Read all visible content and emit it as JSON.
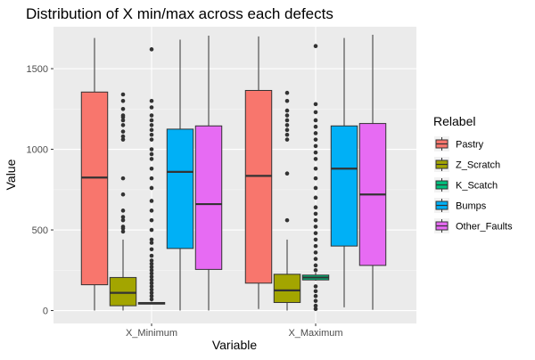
{
  "chart_data": {
    "type": "boxplot",
    "title": "Distribution of X min/max across each defects",
    "xlabel": "Variable",
    "ylabel": "Value",
    "categories": [
      "X_Minimum",
      "X_Maximum"
    ],
    "ylim": [
      -80,
      1760
    ],
    "yticks": [
      0,
      500,
      1000,
      1500
    ],
    "grid": true,
    "legend": {
      "title": "Relabel",
      "position": "right",
      "entries": [
        "Pastry",
        "Z_Scratch",
        "K_Scatch",
        "Bumps",
        "Other_Faults"
      ]
    },
    "series": [
      {
        "name": "Pastry",
        "color": "#F8766D",
        "boxes": [
          {
            "category": "X_Minimum",
            "min": 0,
            "q1": 160,
            "median": 825,
            "q3": 1355,
            "max": 1690,
            "outliers": []
          },
          {
            "category": "X_Maximum",
            "min": 10,
            "q1": 170,
            "median": 835,
            "q3": 1365,
            "max": 1700,
            "outliers": []
          }
        ]
      },
      {
        "name": "Z_Scratch",
        "color": "#A3A500",
        "boxes": [
          {
            "category": "X_Minimum",
            "min": 0,
            "q1": 30,
            "median": 110,
            "q3": 205,
            "max": 440,
            "outliers": [
              490,
              510,
              520,
              560,
              580,
              620,
              720,
              820,
              1060,
              1080,
              1110,
              1150,
              1180,
              1200,
              1210,
              1250,
              1300,
              1340
            ]
          },
          {
            "category": "X_Maximum",
            "min": 0,
            "q1": 50,
            "median": 125,
            "q3": 225,
            "max": 440,
            "outliers": [
              560,
              850,
              1060,
              1090,
              1120,
              1150,
              1180,
              1210,
              1240,
              1300,
              1350
            ]
          }
        ]
      },
      {
        "name": "K_Scatch",
        "color": "#00BF7D",
        "boxes": [
          {
            "category": "X_Minimum",
            "min": 40,
            "q1": 40,
            "median": 45,
            "q3": 50,
            "max": 55,
            "outliers": [
              70,
              90,
              110,
              130,
              150,
              170,
              190,
              210,
              230,
              250,
              270,
              290,
              310,
              340,
              380,
              420,
              440,
              500,
              560,
              620,
              680,
              760,
              820,
              880,
              940,
              970,
              1000,
              1060,
              1090,
              1120,
              1150,
              1180,
              1210,
              1260,
              1300,
              1620
            ]
          },
          {
            "category": "X_Maximum",
            "min": 185,
            "q1": 190,
            "median": 205,
            "q3": 220,
            "max": 235,
            "outliers": [
              10,
              30,
              60,
              90,
              120,
              150,
              250,
              280,
              320,
              360,
              400,
              440,
              480,
              520,
              560,
              600,
              640,
              700,
              760,
              820,
              880,
              940,
              980,
              1020,
              1060,
              1100,
              1140,
              1180,
              1230,
              1280,
              1640
            ]
          }
        ]
      },
      {
        "name": "Bumps",
        "color": "#00B0F6",
        "boxes": [
          {
            "category": "X_Minimum",
            "min": 0,
            "q1": 385,
            "median": 860,
            "q3": 1125,
            "max": 1680,
            "outliers": []
          },
          {
            "category": "X_Maximum",
            "min": 20,
            "q1": 400,
            "median": 880,
            "q3": 1145,
            "max": 1690,
            "outliers": []
          }
        ]
      },
      {
        "name": "Other_Faults",
        "color": "#E76BF3",
        "boxes": [
          {
            "category": "X_Minimum",
            "min": 0,
            "q1": 255,
            "median": 660,
            "q3": 1145,
            "max": 1705,
            "outliers": []
          },
          {
            "category": "X_Maximum",
            "min": 5,
            "q1": 280,
            "median": 720,
            "q3": 1160,
            "max": 1710,
            "outliers": []
          }
        ]
      }
    ]
  }
}
